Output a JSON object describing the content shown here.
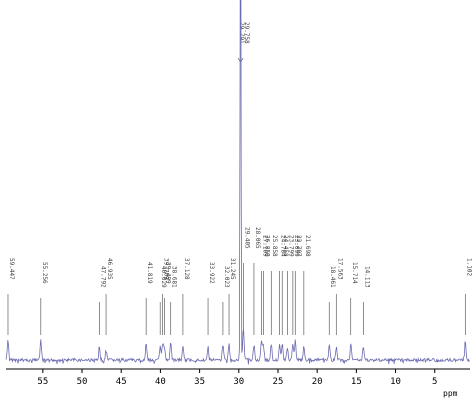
{
  "chart_data": {
    "type": "line",
    "xlabel": "ppm",
    "x_reversed": true,
    "xlim": [
      59.7,
      0.5
    ],
    "ylim": [
      0,
      100
    ],
    "x_ticks": [
      55,
      50,
      45,
      40,
      35,
      30,
      25,
      20,
      15,
      10,
      5
    ],
    "x_tick_labels": [
      "55",
      "50",
      "45",
      "40",
      "35",
      "30",
      "25",
      "20",
      "15",
      "10",
      "5"
    ],
    "peaks": [
      {
        "label": "59.447",
        "ppm": 59.447,
        "height": 6
      },
      {
        "label": "55.256",
        "ppm": 55.256,
        "height": 6
      },
      {
        "label": "47.792",
        "ppm": 47.792,
        "height": 4
      },
      {
        "label": "46.935",
        "ppm": 46.935,
        "height": 3
      },
      {
        "label": "41.819",
        "ppm": 41.819,
        "height": 5
      },
      {
        "label": "40.029",
        "ppm": 40.029,
        "height": 4
      },
      {
        "label": "39.709",
        "ppm": 39.709,
        "height": 5
      },
      {
        "label": "39.499",
        "ppm": 39.499,
        "height": 4
      },
      {
        "label": "38.681",
        "ppm": 38.681,
        "height": 6
      },
      {
        "label": "37.128",
        "ppm": 37.128,
        "height": 4
      },
      {
        "label": "33.922",
        "ppm": 33.922,
        "height": 4
      },
      {
        "label": "32.023",
        "ppm": 32.023,
        "height": 5
      },
      {
        "label": "31.245",
        "ppm": 31.245,
        "height": 5
      },
      {
        "label": "29.791",
        "ppm": 29.791,
        "height": 100
      },
      {
        "label": "29.758",
        "ppm": 29.758,
        "height": 98
      },
      {
        "label": "29.405",
        "ppm": 29.405,
        "height": 10
      },
      {
        "label": "28.065",
        "ppm": 28.065,
        "height": 5
      },
      {
        "label": "27.109",
        "ppm": 27.109,
        "height": 6
      },
      {
        "label": "26.850",
        "ppm": 26.85,
        "height": 5
      },
      {
        "label": "25.858",
        "ppm": 25.858,
        "height": 5
      },
      {
        "label": "24.784",
        "ppm": 24.784,
        "height": 5
      },
      {
        "label": "24.458",
        "ppm": 24.458,
        "height": 5
      },
      {
        "label": "23.799",
        "ppm": 23.799,
        "height": 4
      },
      {
        "label": "23.099",
        "ppm": 23.099,
        "height": 5
      },
      {
        "label": "22.797",
        "ppm": 22.797,
        "height": 6
      },
      {
        "label": "21.698",
        "ppm": 21.698,
        "height": 4
      },
      {
        "label": "18.461",
        "ppm": 18.461,
        "height": 5
      },
      {
        "label": "17.563",
        "ppm": 17.563,
        "height": 4
      },
      {
        "label": "15.714",
        "ppm": 15.714,
        "height": 5
      },
      {
        "label": "14.113",
        "ppm": 14.113,
        "height": 4
      },
      {
        "label": "1.102",
        "ppm": 1.102,
        "height": 6
      }
    ],
    "line_color": "#6b6bb0",
    "annotation_color": "#444444",
    "axis_color": "#000000",
    "grid": false,
    "legend": "none"
  }
}
